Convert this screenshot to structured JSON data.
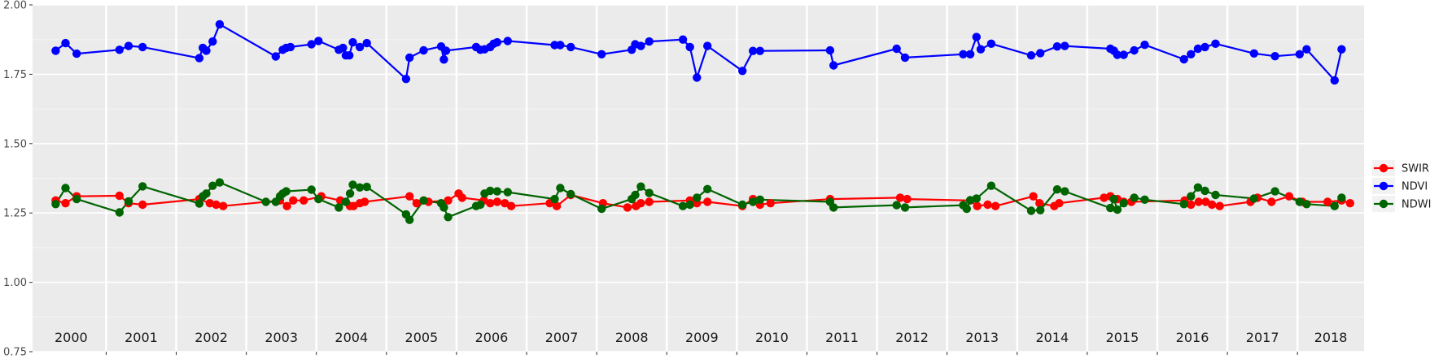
{
  "chart_data": {
    "type": "line",
    "title": "",
    "xlabel": "",
    "ylabel": "",
    "ylim": [
      0.75,
      2.0
    ],
    "xlim": [
      1999.95,
      2018.95
    ],
    "y_ticks": [
      "0.75",
      "1.00",
      "1.25",
      "1.50",
      "1.75",
      "2.00"
    ],
    "y_tick_values": [
      0.75,
      1.0,
      1.25,
      1.5,
      1.75,
      2.0
    ],
    "year_labels": [
      "2000",
      "2001",
      "2002",
      "2003",
      "2004",
      "2005",
      "2006",
      "2007",
      "2008",
      "2009",
      "2010",
      "2011",
      "2012",
      "2013",
      "2014",
      "2015",
      "2016",
      "2017",
      "2018"
    ],
    "grid": true,
    "legend_position": "right",
    "series": [
      {
        "name": "SWIR",
        "color": "#ff0000",
        "x": [
          2000.28,
          2000.42,
          2000.58,
          2001.19,
          2001.32,
          2001.52,
          2002.33,
          2002.48,
          2002.57,
          2002.67,
          2003.48,
          2003.58,
          2003.67,
          2003.82,
          2004.07,
          2004.34,
          2004.48,
          2004.53,
          2004.62,
          2004.69,
          2005.33,
          2005.43,
          2005.6,
          2005.88,
          2006.03,
          2006.08,
          2006.39,
          2006.48,
          2006.58,
          2006.69,
          2006.78,
          2007.33,
          2007.43,
          2007.63,
          2008.09,
          2008.44,
          2008.56,
          2008.63,
          2008.75,
          2009.33,
          2009.43,
          2009.58,
          2010.08,
          2010.23,
          2010.33,
          2010.48,
          2011.33,
          2012.33,
          2012.43,
          2013.33,
          2013.43,
          2013.58,
          2013.69,
          2014.23,
          2014.32,
          2014.53,
          2014.6,
          2015.24,
          2015.33,
          2015.43,
          2015.52,
          2015.63,
          2016.39,
          2016.48,
          2016.59,
          2016.69,
          2016.78,
          2016.89,
          2017.33,
          2017.43,
          2017.63,
          2017.88,
          2018.07,
          2018.43,
          2018.63,
          2018.75
        ],
        "y": [
          1.295,
          1.285,
          1.31,
          1.312,
          1.285,
          1.28,
          1.3,
          1.285,
          1.28,
          1.275,
          1.295,
          1.275,
          1.295,
          1.295,
          1.31,
          1.295,
          1.275,
          1.275,
          1.285,
          1.29,
          1.31,
          1.285,
          1.29,
          1.295,
          1.32,
          1.305,
          1.295,
          1.285,
          1.29,
          1.285,
          1.275,
          1.285,
          1.275,
          1.315,
          1.285,
          1.27,
          1.275,
          1.285,
          1.29,
          1.295,
          1.285,
          1.29,
          1.275,
          1.3,
          1.28,
          1.285,
          1.3,
          1.305,
          1.3,
          1.295,
          1.275,
          1.28,
          1.275,
          1.31,
          1.285,
          1.275,
          1.285,
          1.305,
          1.31,
          1.3,
          1.29,
          1.29,
          1.295,
          1.28,
          1.29,
          1.29,
          1.28,
          1.275,
          1.29,
          1.305,
          1.29,
          1.31,
          1.29,
          1.29,
          1.295,
          1.285
        ],
        "points": [
          [
            2000.28,
            1.295
          ],
          [
            2000.42,
            1.285
          ],
          [
            2000.58,
            1.31
          ],
          [
            2001.19,
            1.312
          ],
          [
            2001.32,
            1.285
          ],
          [
            2001.52,
            1.28
          ],
          [
            2002.33,
            1.3
          ],
          [
            2002.48,
            1.285
          ],
          [
            2002.57,
            1.28
          ],
          [
            2002.67,
            1.275
          ],
          [
            2003.48,
            1.295
          ],
          [
            2003.58,
            1.275
          ],
          [
            2003.67,
            1.295
          ],
          [
            2003.82,
            1.295
          ],
          [
            2004.07,
            1.31
          ],
          [
            2004.34,
            1.295
          ],
          [
            2004.48,
            1.275
          ],
          [
            2004.53,
            1.275
          ],
          [
            2004.62,
            1.285
          ],
          [
            2004.69,
            1.29
          ],
          [
            2005.33,
            1.31
          ],
          [
            2005.43,
            1.285
          ],
          [
            2005.6,
            1.29
          ],
          [
            2005.88,
            1.295
          ],
          [
            2006.03,
            1.32
          ],
          [
            2006.08,
            1.305
          ],
          [
            2006.39,
            1.295
          ],
          [
            2006.48,
            1.285
          ],
          [
            2006.58,
            1.29
          ],
          [
            2006.69,
            1.285
          ],
          [
            2006.78,
            1.275
          ],
          [
            2007.33,
            1.285
          ],
          [
            2007.43,
            1.275
          ],
          [
            2007.63,
            1.315
          ],
          [
            2008.09,
            1.285
          ],
          [
            2008.44,
            1.27
          ],
          [
            2008.56,
            1.275
          ],
          [
            2008.63,
            1.285
          ],
          [
            2008.75,
            1.29
          ],
          [
            2009.33,
            1.295
          ],
          [
            2009.43,
            1.285
          ],
          [
            2009.58,
            1.29
          ],
          [
            2010.08,
            1.275
          ],
          [
            2010.23,
            1.3
          ],
          [
            2010.33,
            1.28
          ],
          [
            2010.48,
            1.285
          ],
          [
            2011.33,
            1.3
          ],
          [
            2012.33,
            1.305
          ],
          [
            2012.43,
            1.3
          ],
          [
            2013.33,
            1.295
          ],
          [
            2013.43,
            1.275
          ],
          [
            2013.58,
            1.28
          ],
          [
            2013.69,
            1.275
          ],
          [
            2014.23,
            1.31
          ],
          [
            2014.32,
            1.285
          ],
          [
            2014.53,
            1.275
          ],
          [
            2014.6,
            1.285
          ],
          [
            2015.24,
            1.305
          ],
          [
            2015.33,
            1.31
          ],
          [
            2015.43,
            1.3
          ],
          [
            2015.52,
            1.29
          ],
          [
            2015.63,
            1.29
          ],
          [
            2016.39,
            1.295
          ],
          [
            2016.48,
            1.28
          ],
          [
            2016.59,
            1.29
          ],
          [
            2016.69,
            1.29
          ],
          [
            2016.78,
            1.28
          ],
          [
            2016.89,
            1.275
          ],
          [
            2017.33,
            1.29
          ],
          [
            2017.43,
            1.305
          ],
          [
            2017.63,
            1.29
          ],
          [
            2017.88,
            1.31
          ],
          [
            2018.07,
            1.29
          ],
          [
            2018.43,
            1.29
          ],
          [
            2018.63,
            1.295
          ],
          [
            2018.75,
            1.285
          ]
        ]
      },
      {
        "name": "NDVI",
        "color": "#0000ff",
        "points": [
          [
            2000.28,
            1.835
          ],
          [
            2000.42,
            1.862
          ],
          [
            2000.58,
            1.824
          ],
          [
            2001.19,
            1.838
          ],
          [
            2001.32,
            1.852
          ],
          [
            2001.52,
            1.848
          ],
          [
            2002.33,
            1.808
          ],
          [
            2002.38,
            1.845
          ],
          [
            2002.43,
            1.835
          ],
          [
            2002.52,
            1.868
          ],
          [
            2002.62,
            1.93
          ],
          [
            2003.42,
            1.814
          ],
          [
            2003.52,
            1.838
          ],
          [
            2003.57,
            1.845
          ],
          [
            2003.63,
            1.848
          ],
          [
            2003.93,
            1.858
          ],
          [
            2004.03,
            1.87
          ],
          [
            2004.32,
            1.838
          ],
          [
            2004.38,
            1.845
          ],
          [
            2004.42,
            1.818
          ],
          [
            2004.47,
            1.818
          ],
          [
            2004.52,
            1.865
          ],
          [
            2004.62,
            1.848
          ],
          [
            2004.72,
            1.862
          ],
          [
            2005.28,
            1.733
          ],
          [
            2005.33,
            1.81
          ],
          [
            2005.53,
            1.836
          ],
          [
            2005.78,
            1.85
          ],
          [
            2005.82,
            1.803
          ],
          [
            2005.85,
            1.835
          ],
          [
            2006.28,
            1.848
          ],
          [
            2006.34,
            1.838
          ],
          [
            2006.4,
            1.84
          ],
          [
            2006.48,
            1.848
          ],
          [
            2006.53,
            1.86
          ],
          [
            2006.58,
            1.865
          ],
          [
            2006.73,
            1.87
          ],
          [
            2007.4,
            1.855
          ],
          [
            2007.48,
            1.855
          ],
          [
            2007.63,
            1.848
          ],
          [
            2008.07,
            1.822
          ],
          [
            2008.5,
            1.838
          ],
          [
            2008.55,
            1.858
          ],
          [
            2008.63,
            1.852
          ],
          [
            2008.75,
            1.868
          ],
          [
            2009.23,
            1.875
          ],
          [
            2009.33,
            1.848
          ],
          [
            2009.43,
            1.738
          ],
          [
            2009.58,
            1.852
          ],
          [
            2010.08,
            1.762
          ],
          [
            2010.23,
            1.834
          ],
          [
            2010.33,
            1.834
          ],
          [
            2011.33,
            1.836
          ],
          [
            2011.38,
            1.782
          ],
          [
            2012.28,
            1.842
          ],
          [
            2012.4,
            1.81
          ],
          [
            2013.23,
            1.822
          ],
          [
            2013.33,
            1.822
          ],
          [
            2013.42,
            1.884
          ],
          [
            2013.48,
            1.84
          ],
          [
            2013.63,
            1.86
          ],
          [
            2014.2,
            1.818
          ],
          [
            2014.33,
            1.826
          ],
          [
            2014.57,
            1.85
          ],
          [
            2014.68,
            1.852
          ],
          [
            2015.33,
            1.842
          ],
          [
            2015.38,
            1.835
          ],
          [
            2015.43,
            1.82
          ],
          [
            2015.52,
            1.82
          ],
          [
            2015.67,
            1.836
          ],
          [
            2015.82,
            1.856
          ],
          [
            2016.38,
            1.804
          ],
          [
            2016.48,
            1.822
          ],
          [
            2016.58,
            1.842
          ],
          [
            2016.68,
            1.848
          ],
          [
            2016.83,
            1.86
          ],
          [
            2017.38,
            1.825
          ],
          [
            2017.68,
            1.815
          ],
          [
            2018.03,
            1.822
          ],
          [
            2018.13,
            1.84
          ],
          [
            2018.53,
            1.728
          ],
          [
            2018.63,
            1.84
          ]
        ]
      },
      {
        "name": "NDWI",
        "color": "#006400",
        "points": [
          [
            2000.28,
            1.282
          ],
          [
            2000.42,
            1.34
          ],
          [
            2000.58,
            1.3
          ],
          [
            2001.19,
            1.252
          ],
          [
            2001.32,
            1.292
          ],
          [
            2001.52,
            1.346
          ],
          [
            2002.33,
            1.284
          ],
          [
            2002.38,
            1.31
          ],
          [
            2002.43,
            1.32
          ],
          [
            2002.52,
            1.348
          ],
          [
            2002.62,
            1.36
          ],
          [
            2003.28,
            1.29
          ],
          [
            2003.42,
            1.29
          ],
          [
            2003.48,
            1.31
          ],
          [
            2003.52,
            1.32
          ],
          [
            2003.57,
            1.328
          ],
          [
            2003.93,
            1.334
          ],
          [
            2004.03,
            1.3
          ],
          [
            2004.32,
            1.27
          ],
          [
            2004.42,
            1.29
          ],
          [
            2004.48,
            1.32
          ],
          [
            2004.52,
            1.352
          ],
          [
            2004.62,
            1.342
          ],
          [
            2004.72,
            1.344
          ],
          [
            2005.28,
            1.245
          ],
          [
            2005.33,
            1.225
          ],
          [
            2005.53,
            1.295
          ],
          [
            2005.78,
            1.285
          ],
          [
            2005.82,
            1.27
          ],
          [
            2005.88,
            1.235
          ],
          [
            2006.28,
            1.275
          ],
          [
            2006.34,
            1.28
          ],
          [
            2006.4,
            1.32
          ],
          [
            2006.48,
            1.33
          ],
          [
            2006.58,
            1.328
          ],
          [
            2006.73,
            1.325
          ],
          [
            2007.4,
            1.3
          ],
          [
            2007.48,
            1.34
          ],
          [
            2007.63,
            1.318
          ],
          [
            2008.07,
            1.265
          ],
          [
            2008.5,
            1.3
          ],
          [
            2008.55,
            1.315
          ],
          [
            2008.63,
            1.345
          ],
          [
            2008.75,
            1.322
          ],
          [
            2009.23,
            1.275
          ],
          [
            2009.33,
            1.28
          ],
          [
            2009.43,
            1.305
          ],
          [
            2009.58,
            1.336
          ],
          [
            2010.08,
            1.28
          ],
          [
            2010.23,
            1.29
          ],
          [
            2010.33,
            1.298
          ],
          [
            2011.33,
            1.29
          ],
          [
            2011.38,
            1.27
          ],
          [
            2012.28,
            1.278
          ],
          [
            2012.4,
            1.27
          ],
          [
            2013.23,
            1.278
          ],
          [
            2013.28,
            1.265
          ],
          [
            2013.33,
            1.296
          ],
          [
            2013.42,
            1.302
          ],
          [
            2013.63,
            1.348
          ],
          [
            2014.2,
            1.258
          ],
          [
            2014.33,
            1.26
          ],
          [
            2014.57,
            1.335
          ],
          [
            2014.68,
            1.328
          ],
          [
            2015.33,
            1.268
          ],
          [
            2015.38,
            1.3
          ],
          [
            2015.43,
            1.262
          ],
          [
            2015.52,
            1.285
          ],
          [
            2015.67,
            1.305
          ],
          [
            2015.82,
            1.298
          ],
          [
            2016.38,
            1.282
          ],
          [
            2016.48,
            1.31
          ],
          [
            2016.58,
            1.342
          ],
          [
            2016.68,
            1.33
          ],
          [
            2016.83,
            1.315
          ],
          [
            2017.38,
            1.302
          ],
          [
            2017.68,
            1.328
          ],
          [
            2018.03,
            1.29
          ],
          [
            2018.13,
            1.282
          ],
          [
            2018.53,
            1.275
          ],
          [
            2018.63,
            1.305
          ]
        ]
      }
    ]
  }
}
